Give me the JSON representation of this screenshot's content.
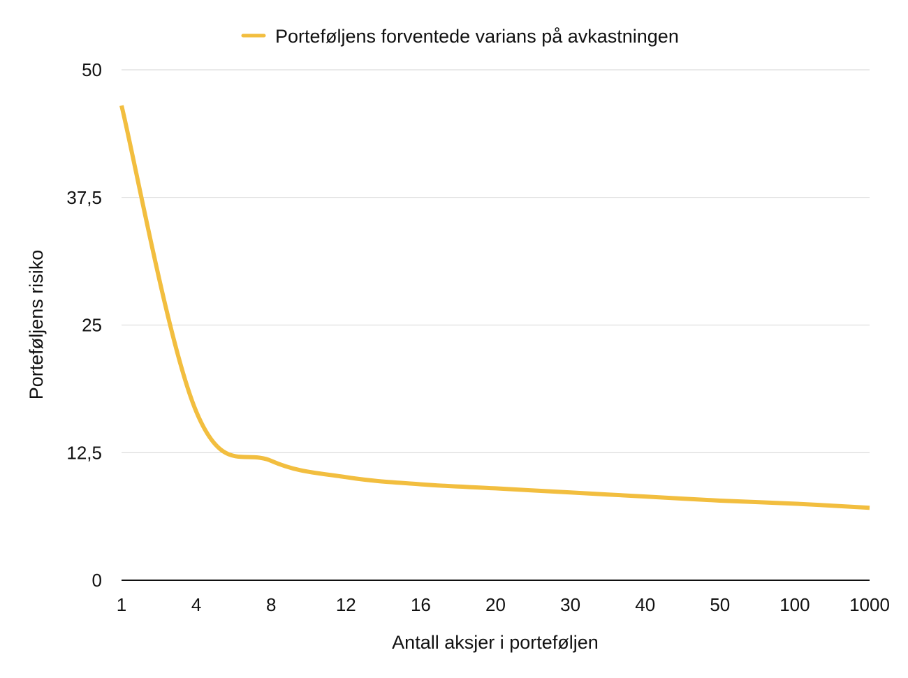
{
  "chart_data": {
    "type": "line",
    "xlabel": "Antall aksjer i porteføljen",
    "ylabel": "Porteføljens risiko",
    "ylim": [
      0,
      50
    ],
    "yticks": [
      "0",
      "12,5",
      "25",
      "37,5",
      "50"
    ],
    "ytick_values": [
      0,
      12.5,
      25,
      37.5,
      50
    ],
    "categories": [
      "1",
      "4",
      "8",
      "12",
      "16",
      "20",
      "30",
      "40",
      "50",
      "100",
      "1000"
    ],
    "grid": "horizontal",
    "legend_position": "top-center",
    "series": [
      {
        "name": "Porteføljens forventede varians på avkastningen",
        "color": "#F2BE3F",
        "values": [
          46.5,
          16.5,
          11.7,
          10.1,
          9.4,
          9.0,
          8.6,
          8.2,
          7.8,
          7.5,
          7.1
        ]
      }
    ]
  }
}
